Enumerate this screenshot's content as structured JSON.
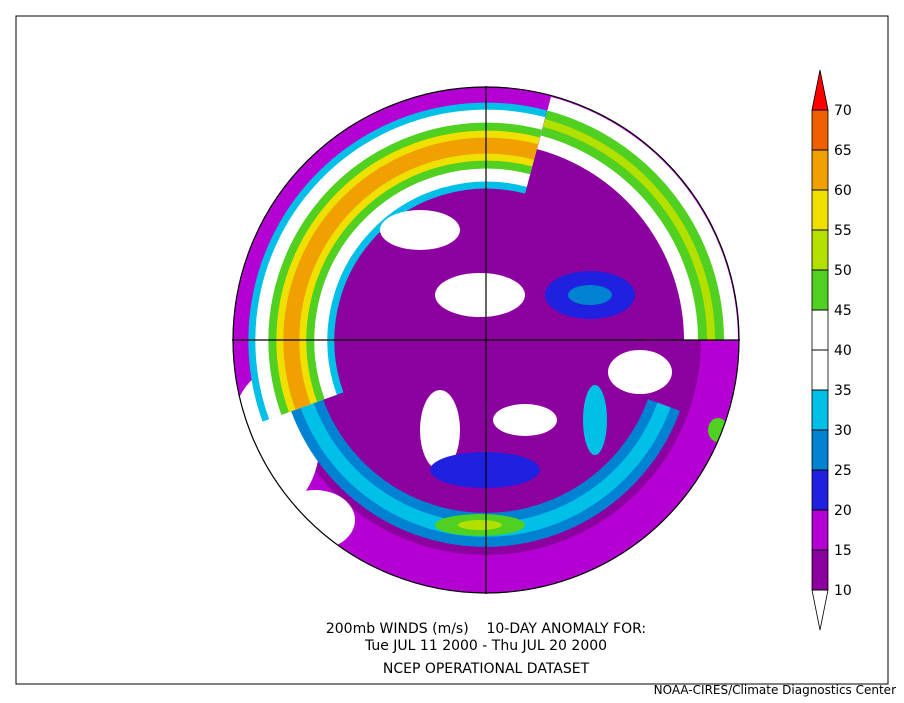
{
  "map": {
    "caption": {
      "line1": "200mb WINDS (m/s)    10-DAY ANOMALY FOR:",
      "line2": "Tue JUL 11 2000 - Thu JUL 20 2000",
      "line3": "NCEP OPERATIONAL DATASET"
    },
    "credit": "NOAA-CIRES/Climate Diagnostics Center",
    "colorbar": {
      "levels": [
        10,
        15,
        20,
        25,
        30,
        35,
        40,
        45,
        50,
        55,
        60,
        65,
        70
      ],
      "colors": [
        "#ffffff",
        "#8c00a0",
        "#b400d2",
        "#2020e0",
        "#0082d2",
        "#00c0e8",
        "#ffffff",
        "#ffffff",
        "#50d020",
        "#b4e000",
        "#f0e000",
        "#f0a000",
        "#f06000",
        "#ff0000"
      ]
    }
  }
}
